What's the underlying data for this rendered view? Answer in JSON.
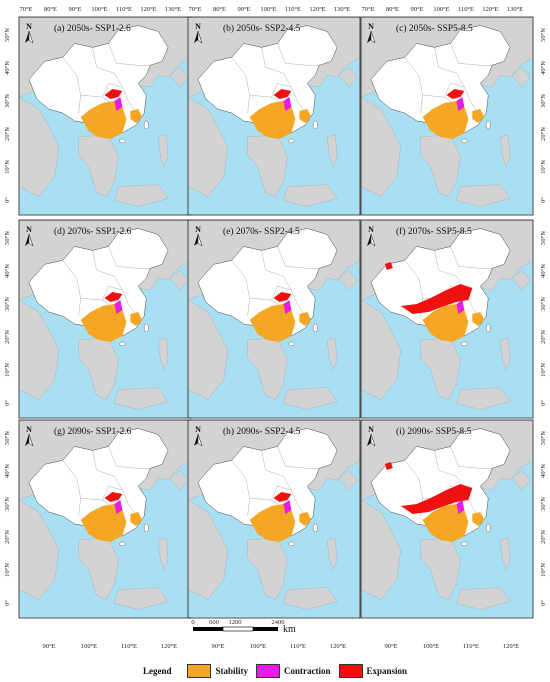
{
  "panels": [
    {
      "title": "(a)  2050s- SSP1-2.6"
    },
    {
      "title": "(b)  2050s- SSP2-4.5"
    },
    {
      "title": "(c)  2050s- SSP5-8.5"
    },
    {
      "title": "(d)  2070s- SSP1-2.6"
    },
    {
      "title": "(e)  2070s- SSP2-4.5"
    },
    {
      "title": "(f)  2070s- SSP5-8.5"
    },
    {
      "title": "(g)  2090s- SSP1-2.6"
    },
    {
      "title": "(h)  2090s- SSP2-4.5"
    },
    {
      "title": "(i)  2090s- SSP5-8.5"
    }
  ],
  "top_ticks": [
    "70°E",
    "80°E",
    "90°E",
    "100°E",
    "110°E",
    "120°E",
    "130°E"
  ],
  "bottom_ticks": [
    "90°E",
    "100°E",
    "110°E",
    "120°E"
  ],
  "lat_ticks": [
    "50°N",
    "40°N",
    "30°N",
    "20°N",
    "10°N",
    "0°"
  ],
  "north_label": "N",
  "scalebar": {
    "labels": [
      "0",
      "600",
      "1200",
      "2400"
    ],
    "unit": "km"
  },
  "legend": {
    "title": "Legend",
    "items": [
      {
        "label": "Stability",
        "color": "#F5A623"
      },
      {
        "label": "Contraction",
        "color": "#E61DE6"
      },
      {
        "label": "Expansion",
        "color": "#F01010"
      }
    ]
  },
  "colors": {
    "ocean": "#A9DFF2",
    "land": "#D3D3D3",
    "china": "#FFFFFF",
    "stability": "#F5A623",
    "contraction": "#E61DE6",
    "expansion": "#F01010"
  }
}
